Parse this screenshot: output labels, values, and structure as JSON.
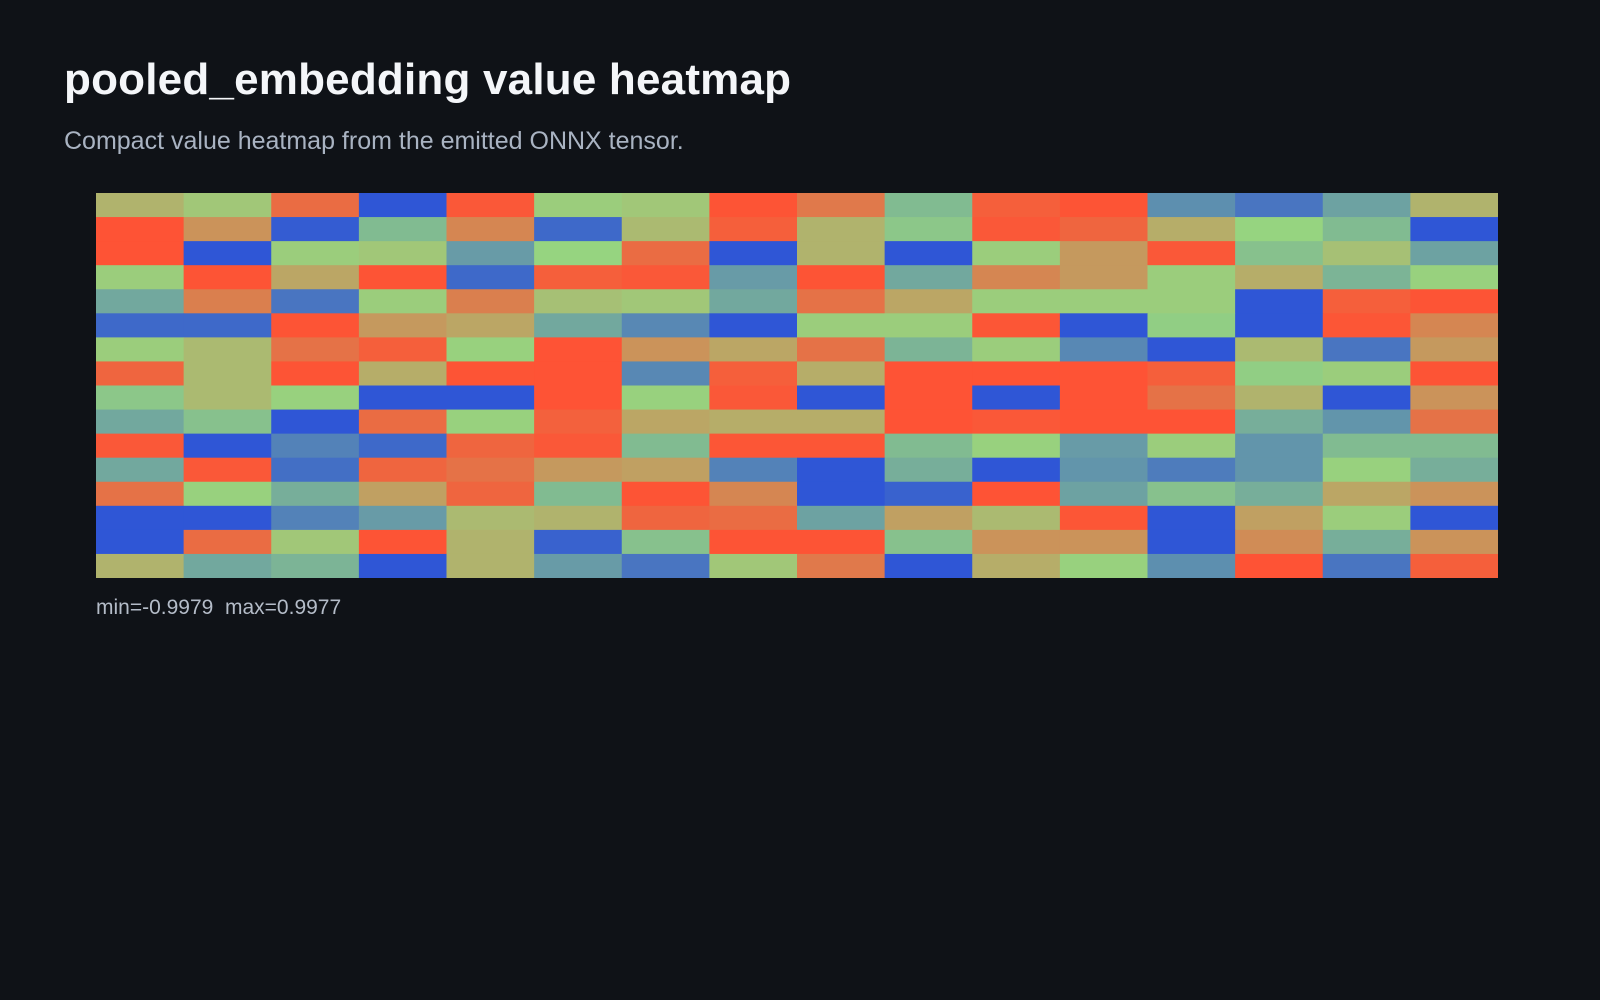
{
  "header": {
    "title": "pooled_embedding value heatmap",
    "subtitle": "Compact value heatmap from the emitted ONNX tensor."
  },
  "footer": {
    "range_text": "min=-0.9979  max=0.9977"
  },
  "colors": {
    "background": "#0f1217",
    "low": "#2f56d6",
    "mid": "#96d480",
    "high": "#ff5234"
  },
  "chart_data": {
    "type": "heatmap",
    "title": "pooled_embedding value heatmap",
    "rows": 16,
    "cols": 16,
    "min": -0.9979,
    "max": 0.9977,
    "colorscale": [
      "#2f56d6",
      "#96d480",
      "#ff5234"
    ],
    "values": [
      [
        0.25,
        0.1,
        0.8,
        -1.0,
        0.95,
        0.05,
        0.1,
        0.98,
        0.7,
        -0.2,
        0.9,
        0.98,
        -0.55,
        -0.75,
        -0.4,
        0.25
      ],
      [
        0.99,
        0.5,
        -0.95,
        -0.2,
        0.6,
        -0.85,
        0.2,
        0.9,
        0.25,
        -0.1,
        0.95,
        0.85,
        0.3,
        0.0,
        -0.2,
        -1.0
      ],
      [
        0.99,
        -1.0,
        0.05,
        0.1,
        -0.45,
        0.0,
        0.8,
        -1.0,
        0.25,
        -1.0,
        0.05,
        0.45,
        0.95,
        -0.15,
        0.15,
        -0.4
      ],
      [
        0.05,
        0.98,
        0.35,
        0.98,
        -0.85,
        0.9,
        0.95,
        -0.45,
        0.98,
        -0.35,
        0.6,
        0.45,
        0.05,
        0.3,
        -0.25,
        0.02
      ],
      [
        -0.35,
        0.65,
        -0.75,
        0.05,
        0.65,
        0.15,
        0.1,
        -0.35,
        0.75,
        0.35,
        0.05,
        0.05,
        0.05,
        -1.0,
        0.9,
        0.98
      ],
      [
        -0.85,
        -0.85,
        0.98,
        0.45,
        0.35,
        -0.35,
        -0.6,
        -1.0,
        0.05,
        0.05,
        0.97,
        -1.0,
        -0.05,
        -1.0,
        0.97,
        0.6
      ],
      [
        0.05,
        0.2,
        0.75,
        0.9,
        0.02,
        0.99,
        0.5,
        0.35,
        0.75,
        -0.25,
        0.05,
        -0.6,
        -1.0,
        0.2,
        -0.75,
        0.45
      ],
      [
        0.85,
        0.2,
        0.98,
        0.3,
        0.98,
        0.99,
        -0.6,
        0.9,
        0.3,
        0.99,
        0.99,
        0.99,
        0.9,
        -0.05,
        0.05,
        0.98
      ],
      [
        -0.1,
        0.2,
        0.02,
        -1.0,
        -1.0,
        0.99,
        0.02,
        0.95,
        -1.0,
        0.99,
        -1.0,
        0.99,
        0.75,
        0.25,
        -1.0,
        0.5
      ],
      [
        -0.35,
        -0.15,
        -1.0,
        0.8,
        0.02,
        0.88,
        0.35,
        0.3,
        0.3,
        0.99,
        0.95,
        0.99,
        0.99,
        -0.3,
        -0.5,
        0.75
      ],
      [
        0.95,
        -1.0,
        -0.65,
        -0.85,
        0.85,
        0.95,
        -0.2,
        0.97,
        0.97,
        -0.2,
        0.02,
        -0.45,
        0.05,
        -0.5,
        -0.2,
        -0.2
      ],
      [
        -0.35,
        0.95,
        -0.8,
        0.85,
        0.75,
        0.45,
        0.4,
        -0.65,
        -1.0,
        -0.3,
        -1.0,
        -0.5,
        -0.7,
        -0.5,
        0.02,
        -0.3
      ],
      [
        0.75,
        0.02,
        -0.3,
        0.4,
        0.85,
        -0.2,
        0.98,
        0.6,
        -1.0,
        -0.9,
        0.99,
        -0.4,
        -0.15,
        -0.3,
        0.35,
        0.5
      ],
      [
        -1.0,
        -1.0,
        -0.65,
        -0.45,
        0.2,
        0.25,
        0.85,
        0.8,
        -0.4,
        0.4,
        0.2,
        0.97,
        -1.0,
        0.4,
        0.05,
        -1.0
      ],
      [
        -1.0,
        0.8,
        0.1,
        0.98,
        0.25,
        -0.9,
        -0.15,
        0.98,
        0.98,
        -0.15,
        0.5,
        0.5,
        -1.0,
        0.55,
        -0.3,
        0.5
      ],
      [
        0.25,
        -0.35,
        -0.25,
        -1.0,
        0.25,
        -0.45,
        -0.75,
        0.1,
        0.7,
        -1.0,
        0.3,
        0.02,
        -0.55,
        0.99,
        -0.75,
        0.9
      ]
    ]
  }
}
